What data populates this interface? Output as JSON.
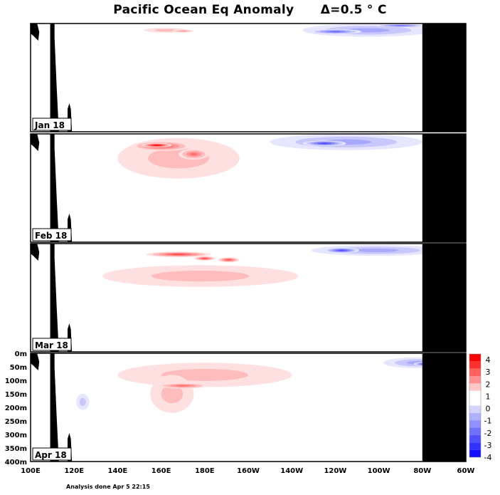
{
  "chart_data": {
    "type": "heatmap",
    "title": "Pacific Ocean Eq Anomaly",
    "interval_label": "Δ=0.5 ° C",
    "footer": "Analysis done Apr 5 22:15",
    "x_ticks": [
      "100E",
      "120E",
      "140E",
      "160E",
      "180E",
      "160W",
      "140W",
      "120W",
      "100W",
      "80W",
      "60W"
    ],
    "y_ticks": [
      "0m",
      "50m",
      "100m",
      "150m",
      "200m",
      "250m",
      "300m",
      "350m",
      "400m"
    ],
    "xlim_deg_east": [
      100,
      300
    ],
    "ylim_m": [
      0,
      400
    ],
    "colorbar": {
      "labels": [
        "4",
        "3",
        "2",
        "1",
        "0",
        "-1",
        "-2",
        "-3",
        "-4"
      ],
      "colors": [
        "#ff0000",
        "#ff3030",
        "#ff6060",
        "#ff9090",
        "#ffc8c8",
        "#ffffff",
        "#ffffff",
        "#d4d4ff",
        "#b0b0ff",
        "#9090ff",
        "#7070ff",
        "#5050ff",
        "#3030ff",
        "#1010ff"
      ]
    },
    "panels": [
      {
        "label": "Jan 18",
        "blobs": [
          {
            "lon": 162,
            "depth": 25,
            "rx": 10,
            "ry": 9,
            "v": 1
          },
          {
            "lon": 170,
            "depth": 28,
            "rx": 5,
            "ry": 5,
            "v": 1.5
          },
          {
            "lon": 255,
            "depth": 25,
            "rx": 30,
            "ry": 24,
            "v": -1.5
          },
          {
            "lon": 240,
            "depth": 30,
            "rx": 12,
            "ry": 9,
            "v": -2.5
          },
          {
            "lon": 270,
            "depth": 8,
            "rx": 12,
            "ry": 6,
            "v": -2.5
          }
        ]
      },
      {
        "label": "Feb 18",
        "blobs": [
          {
            "lon": 168,
            "depth": 90,
            "rx": 28,
            "ry": 75,
            "v": 1
          },
          {
            "lon": 160,
            "depth": 45,
            "rx": 14,
            "ry": 18,
            "v": 2.5
          },
          {
            "lon": 158,
            "depth": 42,
            "rx": 7,
            "ry": 8,
            "v": 3.5
          },
          {
            "lon": 175,
            "depth": 75,
            "rx": 7,
            "ry": 20,
            "v": 2
          },
          {
            "lon": 245,
            "depth": 30,
            "rx": 35,
            "ry": 30,
            "v": -1.5
          },
          {
            "lon": 235,
            "depth": 35,
            "rx": 10,
            "ry": 10,
            "v": -3
          }
        ]
      },
      {
        "label": "Mar 18",
        "blobs": [
          {
            "lon": 178,
            "depth": 120,
            "rx": 45,
            "ry": 40,
            "v": 1
          },
          {
            "lon": 168,
            "depth": 40,
            "rx": 15,
            "ry": 10,
            "v": 2.5
          },
          {
            "lon": 180,
            "depth": 55,
            "rx": 5,
            "ry": 8,
            "v": 2.5
          },
          {
            "lon": 191,
            "depth": 60,
            "rx": 5,
            "ry": 9,
            "v": 2.5
          },
          {
            "lon": 259,
            "depth": 25,
            "rx": 30,
            "ry": 20,
            "v": -1.5
          },
          {
            "lon": 243,
            "depth": 25,
            "rx": 8,
            "ry": 10,
            "v": -3
          }
        ]
      },
      {
        "label": "Apr 18",
        "blobs": [
          {
            "lon": 180,
            "depth": 80,
            "rx": 40,
            "ry": 45,
            "v": 1
          },
          {
            "lon": 165,
            "depth": 150,
            "rx": 10,
            "ry": 70,
            "v": 0.8
          },
          {
            "lon": 170,
            "depth": 120,
            "rx": 12,
            "ry": 10,
            "v": 2
          },
          {
            "lon": 124,
            "depth": 180,
            "rx": 3,
            "ry": 30,
            "v": -1
          },
          {
            "lon": 278,
            "depth": 35,
            "rx": 16,
            "ry": 20,
            "v": -1.5
          },
          {
            "lon": 282,
            "depth": 40,
            "rx": 6,
            "ry": 8,
            "v": -3.5
          }
        ]
      }
    ]
  }
}
